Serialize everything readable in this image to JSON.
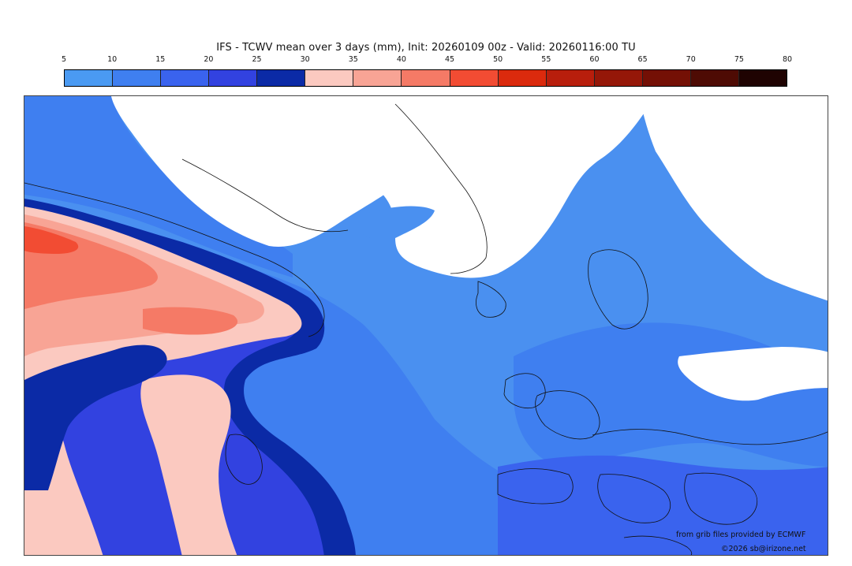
{
  "title": "IFS - TCWV mean over 3 days (mm), Init: 20260109 00z - Valid: 20260116:00 TU",
  "colorbar": {
    "ticks": [
      "5",
      "10",
      "15",
      "20",
      "25",
      "30",
      "35",
      "40",
      "45",
      "50",
      "55",
      "60",
      "65",
      "70",
      "75",
      "80"
    ],
    "colors": [
      "#4a9af2",
      "#3f7ff0",
      "#3a63ee",
      "#3242e0",
      "#0b2aa6",
      "#fbc9c0",
      "#f8a495",
      "#f57a66",
      "#f24c33",
      "#db2a0d",
      "#b81e0c",
      "#951708",
      "#741005",
      "#4e0b04",
      "#1f0302"
    ]
  },
  "map": {
    "description_colors": {
      "ocean_light": "#4a90f0",
      "mid_blue": "#3c72ee",
      "dark_blue": "#0b2aa6",
      "pink_light": "#fbc9c0",
      "pink_mid": "#f8a495",
      "salmon": "#f57a66",
      "dry_white": "#ffffff"
    }
  },
  "credits": {
    "source": "from grib files provided by ECMWF",
    "copyright": "©2026 sb@irizone.net"
  }
}
